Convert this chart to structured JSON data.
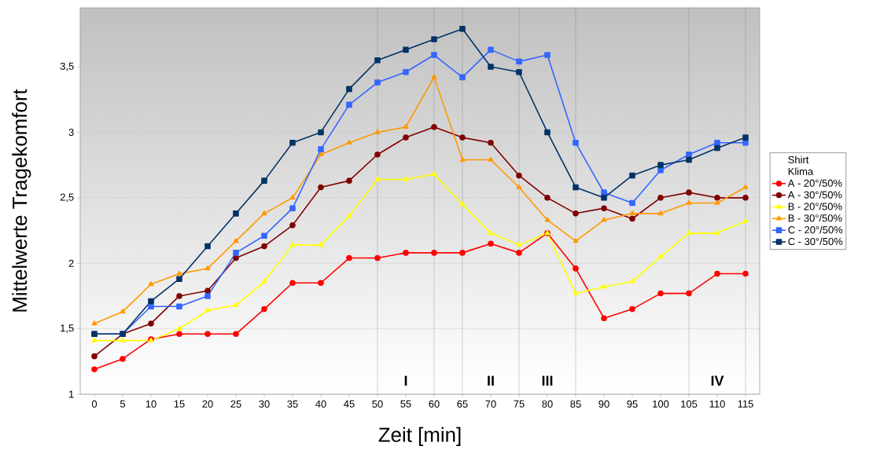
{
  "chart_data": {
    "type": "line",
    "xlabel": "Zeit [min]",
    "ylabel": "Mittelwerte Tragekomfort",
    "legend_title": "Shirt",
    "annotations": [
      "Klima",
      "I",
      "II",
      "III",
      "IV"
    ],
    "x": [
      0,
      5,
      10,
      15,
      20,
      25,
      30,
      35,
      40,
      45,
      50,
      55,
      60,
      65,
      70,
      75,
      80,
      85,
      90,
      95,
      100,
      105,
      110,
      115
    ],
    "xlim": [
      -2.5,
      117.5
    ],
    "xticks": [
      0,
      5,
      10,
      15,
      20,
      25,
      30,
      35,
      40,
      45,
      50,
      55,
      60,
      65,
      70,
      75,
      80,
      85,
      90,
      95,
      100,
      105,
      110,
      115
    ],
    "ylim": [
      1,
      3.95
    ],
    "yticks": [
      1,
      {
        "value": 1.5,
        "label": "1,5"
      },
      2,
      {
        "value": 2.5,
        "label": "2,5"
      },
      3,
      {
        "value": 3.5,
        "label": "3,5"
      }
    ],
    "grid": "y",
    "legend": "right",
    "line_style": "solid",
    "series": [
      {
        "name": "A - 20°/50%",
        "color": "#ff0000",
        "marker": "circle",
        "values": [
          1.19,
          1.27,
          1.42,
          1.46,
          1.46,
          1.46,
          1.65,
          1.85,
          1.85,
          2.04,
          2.04,
          2.08,
          2.08,
          2.08,
          2.15,
          2.08,
          2.23,
          1.96,
          1.58,
          1.65,
          1.77,
          1.77,
          1.92,
          1.92
        ]
      },
      {
        "name": "A - 30°/50%",
        "color": "#800000",
        "marker": "circle",
        "values": [
          1.29,
          1.46,
          1.54,
          1.75,
          1.79,
          2.04,
          2.13,
          2.29,
          2.58,
          2.63,
          2.83,
          2.96,
          3.04,
          2.96,
          2.92,
          2.67,
          2.5,
          2.38,
          2.42,
          2.34,
          2.5,
          2.54,
          2.5,
          2.5
        ]
      },
      {
        "name": "B - 20°/50%",
        "color": "#ffff00",
        "marker": "triangle",
        "values": [
          1.41,
          1.41,
          1.41,
          1.5,
          1.64,
          1.68,
          1.86,
          2.14,
          2.14,
          2.36,
          2.64,
          2.64,
          2.68,
          2.45,
          2.23,
          2.14,
          2.23,
          1.77,
          1.82,
          1.86,
          2.05,
          2.23,
          2.23,
          2.32
        ]
      },
      {
        "name": "B - 30°/50%",
        "color": "#ff9900",
        "marker": "triangle",
        "values": [
          1.54,
          1.63,
          1.84,
          1.92,
          1.96,
          2.17,
          2.38,
          2.5,
          2.83,
          2.92,
          3.0,
          3.04,
          3.42,
          2.79,
          2.79,
          2.58,
          2.33,
          2.17,
          2.33,
          2.38,
          2.38,
          2.46,
          2.46,
          2.58
        ]
      },
      {
        "name": "C - 20°/50%",
        "color": "#3366ff",
        "marker": "square",
        "values": [
          1.46,
          1.46,
          1.67,
          1.67,
          1.75,
          2.08,
          2.21,
          2.42,
          2.87,
          3.21,
          3.38,
          3.46,
          3.59,
          3.42,
          3.63,
          3.54,
          3.59,
          2.92,
          2.54,
          2.46,
          2.71,
          2.83,
          2.92,
          2.92
        ]
      },
      {
        "name": "C - 30°/50%",
        "color": "#003366",
        "marker": "square",
        "values": [
          1.46,
          1.46,
          1.71,
          1.88,
          2.13,
          2.38,
          2.63,
          2.92,
          3.0,
          3.33,
          3.55,
          3.63,
          3.71,
          3.79,
          3.5,
          3.46,
          3.0,
          2.58,
          2.5,
          2.67,
          2.75,
          2.79,
          2.88,
          2.96
        ]
      }
    ],
    "ref_lines": [
      {
        "axis": "x",
        "value": 50,
        "line_style": "dotted"
      },
      {
        "axis": "x",
        "value": 60,
        "line_style": "dotted"
      },
      {
        "axis": "x",
        "value": 65,
        "line_style": "dotted"
      },
      {
        "axis": "x",
        "value": 75,
        "line_style": "dotted"
      },
      {
        "axis": "x",
        "value": 85,
        "line_style": "dotted"
      },
      {
        "axis": "x",
        "value": 105,
        "line_style": "dotted"
      },
      {
        "axis": "x",
        "value": 115,
        "line_style": "dotted"
      }
    ]
  }
}
